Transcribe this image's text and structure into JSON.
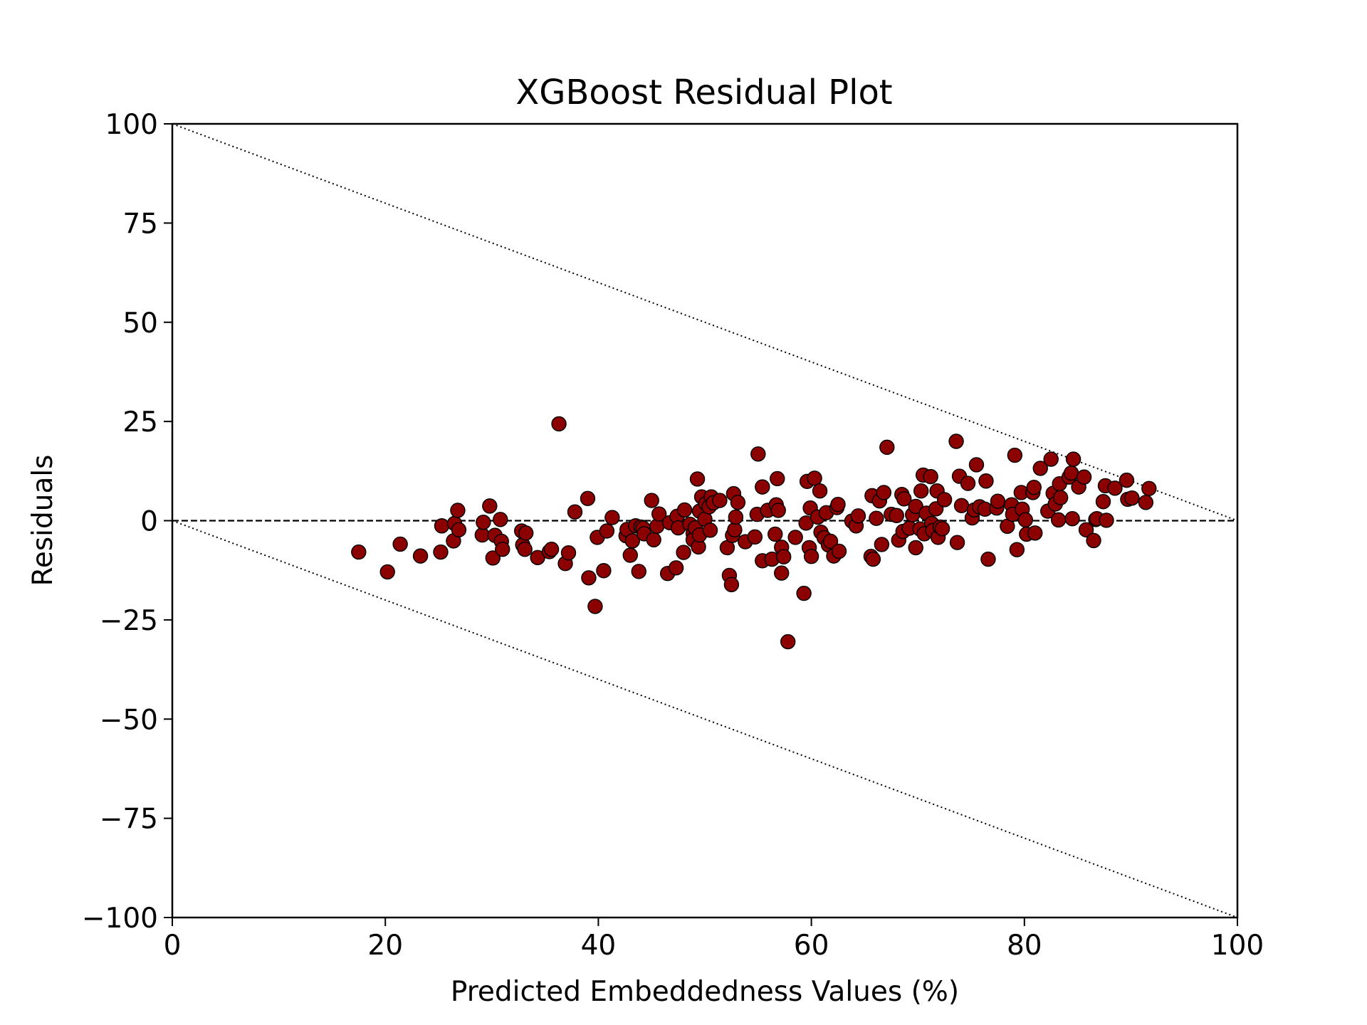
{
  "chart_data": {
    "type": "scatter",
    "title": "XGBoost Residual Plot",
    "xlabel": "Predicted Embeddedness Values (%)",
    "ylabel": "Residuals",
    "xlim": [
      0,
      100
    ],
    "ylim": [
      -100,
      100
    ],
    "xticks": [
      0,
      20,
      40,
      60,
      80,
      100
    ],
    "xtick_labels": [
      "0",
      "20",
      "40",
      "60",
      "80",
      "100"
    ],
    "yticks": [
      100,
      75,
      50,
      25,
      0,
      -25,
      -50,
      -75,
      -100
    ],
    "ytick_labels": [
      "100",
      "75",
      "50",
      "25",
      "0",
      "−25",
      "−50",
      "−75",
      "−100"
    ],
    "grid": false,
    "reference_lines": [
      {
        "style": "dashed",
        "points": [
          [
            0,
            0
          ],
          [
            100,
            0
          ]
        ]
      },
      {
        "style": "dotted",
        "points": [
          [
            0,
            100
          ],
          [
            100,
            0
          ]
        ]
      },
      {
        "style": "dotted",
        "points": [
          [
            0,
            0
          ],
          [
            100,
            -100
          ]
        ]
      }
    ],
    "marker_color": "#8b0000",
    "marker_edge_color": "#000000",
    "points": [
      [
        17.5,
        -7.9
      ],
      [
        20.2,
        -12.9
      ],
      [
        21.4,
        -5.9
      ],
      [
        23.3,
        -8.9
      ],
      [
        25.2,
        -7.9
      ],
      [
        25.3,
        -1.3
      ],
      [
        26.4,
        -5.1
      ],
      [
        26.5,
        -0.7
      ],
      [
        26.8,
        2.6
      ],
      [
        26.9,
        -2.3
      ],
      [
        29.1,
        -3.6
      ],
      [
        29.2,
        -0.4
      ],
      [
        29.8,
        3.7
      ],
      [
        30.1,
        -9.4
      ],
      [
        30.3,
        -3.7
      ],
      [
        30.8,
        0.3
      ],
      [
        30.9,
        -5.2
      ],
      [
        31.0,
        -7.2
      ],
      [
        32.8,
        -2.6
      ],
      [
        32.9,
        -6.1
      ],
      [
        33.1,
        -7.2
      ],
      [
        33.2,
        -3.1
      ],
      [
        34.3,
        -9.3
      ],
      [
        35.4,
        -7.8
      ],
      [
        35.6,
        -7.2
      ],
      [
        36.3,
        24.4
      ],
      [
        36.9,
        -10.8
      ],
      [
        37.2,
        -8.1
      ],
      [
        37.8,
        2.2
      ],
      [
        39.0,
        5.6
      ],
      [
        39.1,
        -14.4
      ],
      [
        39.7,
        -21.6
      ],
      [
        39.9,
        -4.2
      ],
      [
        40.5,
        -12.6
      ],
      [
        40.8,
        -2.6
      ],
      [
        41.3,
        0.8
      ],
      [
        42.6,
        -3.8
      ],
      [
        42.7,
        -2.2
      ],
      [
        43.0,
        -8.7
      ],
      [
        43.2,
        -5.1
      ],
      [
        43.5,
        -1.3
      ],
      [
        43.8,
        -12.8
      ],
      [
        44.0,
        -1.6
      ],
      [
        44.2,
        -1.9
      ],
      [
        44.3,
        -3.3
      ],
      [
        45.0,
        5.1
      ],
      [
        45.2,
        -4.8
      ],
      [
        45.5,
        -1.4
      ],
      [
        45.7,
        1.7
      ],
      [
        46.5,
        -13.3
      ],
      [
        46.7,
        -0.5
      ],
      [
        47.3,
        -11.9
      ],
      [
        47.4,
        1.1
      ],
      [
        47.5,
        -1.8
      ],
      [
        48.0,
        -8.0
      ],
      [
        48.1,
        2.7
      ],
      [
        48.6,
        -0.9
      ],
      [
        48.9,
        -3.2
      ],
      [
        48.9,
        -4.8
      ],
      [
        49.1,
        -1.8
      ],
      [
        49.3,
        10.5
      ],
      [
        49.4,
        -6.6
      ],
      [
        49.5,
        -3.6
      ],
      [
        49.5,
        2.4
      ],
      [
        49.7,
        6.0
      ],
      [
        50.0,
        0.4
      ],
      [
        50.1,
        4.3
      ],
      [
        50.4,
        3.5
      ],
      [
        50.5,
        -2.4
      ],
      [
        50.6,
        6.0
      ],
      [
        50.8,
        4.5
      ],
      [
        51.4,
        5.1
      ],
      [
        52.1,
        -6.8
      ],
      [
        52.3,
        -13.8
      ],
      [
        52.5,
        -16.1
      ],
      [
        52.6,
        -3.7
      ],
      [
        52.7,
        6.8
      ],
      [
        52.8,
        -2.3
      ],
      [
        52.9,
        0.9
      ],
      [
        53.1,
        4.6
      ],
      [
        53.8,
        -5.3
      ],
      [
        54.7,
        -4.1
      ],
      [
        54.9,
        1.6
      ],
      [
        55.0,
        16.8
      ],
      [
        55.4,
        -10.1
      ],
      [
        55.4,
        8.5
      ],
      [
        55.9,
        2.6
      ],
      [
        56.3,
        -9.7
      ],
      [
        56.6,
        -3.4
      ],
      [
        56.7,
        4.0
      ],
      [
        56.8,
        10.6
      ],
      [
        56.9,
        2.6
      ],
      [
        57.2,
        -6.7
      ],
      [
        57.2,
        -13.2
      ],
      [
        57.4,
        -9.1
      ],
      [
        57.8,
        -30.5
      ],
      [
        58.5,
        -4.2
      ],
      [
        59.3,
        -18.3
      ],
      [
        59.5,
        -0.6
      ],
      [
        59.6,
        9.9
      ],
      [
        59.8,
        -6.8
      ],
      [
        59.9,
        3.2
      ],
      [
        60.0,
        -9.0
      ],
      [
        60.3,
        10.7
      ],
      [
        60.6,
        0.9
      ],
      [
        60.8,
        7.5
      ],
      [
        60.9,
        -2.9
      ],
      [
        61.2,
        -4.3
      ],
      [
        61.4,
        2.0
      ],
      [
        61.6,
        -6.1
      ],
      [
        61.8,
        -5.2
      ],
      [
        62.1,
        -8.9
      ],
      [
        62.4,
        3.3
      ],
      [
        62.5,
        4.1
      ],
      [
        62.6,
        -7.7
      ],
      [
        63.8,
        -0.1
      ],
      [
        64.2,
        -1.3
      ],
      [
        64.4,
        1.2
      ],
      [
        65.6,
        -9.0
      ],
      [
        65.7,
        6.3
      ],
      [
        65.8,
        -9.7
      ],
      [
        66.1,
        0.6
      ],
      [
        66.4,
        5.0
      ],
      [
        66.6,
        -6.0
      ],
      [
        66.8,
        7.1
      ],
      [
        67.1,
        18.5
      ],
      [
        67.5,
        1.6
      ],
      [
        68.0,
        1.3
      ],
      [
        68.2,
        -4.9
      ],
      [
        68.5,
        6.6
      ],
      [
        68.6,
        -2.7
      ],
      [
        68.7,
        5.5
      ],
      [
        69.2,
        -1.9
      ],
      [
        69.5,
        1.5
      ],
      [
        69.8,
        3.6
      ],
      [
        69.8,
        -6.8
      ],
      [
        70.2,
        -2.1
      ],
      [
        70.3,
        7.5
      ],
      [
        70.5,
        11.5
      ],
      [
        70.6,
        -3.3
      ],
      [
        70.8,
        1.9
      ],
      [
        71.2,
        11.1
      ],
      [
        71.3,
        -0.7
      ],
      [
        71.4,
        -2.5
      ],
      [
        71.7,
        3.0
      ],
      [
        71.8,
        7.5
      ],
      [
        71.9,
        -4.2
      ],
      [
        72.1,
        -1.6
      ],
      [
        72.3,
        -2.0
      ],
      [
        72.5,
        5.3
      ],
      [
        73.6,
        20.0
      ],
      [
        73.7,
        -5.5
      ],
      [
        73.9,
        11.2
      ],
      [
        74.1,
        3.8
      ],
      [
        74.7,
        9.4
      ],
      [
        75.1,
        0.7
      ],
      [
        75.3,
        2.7
      ],
      [
        75.5,
        14.1
      ],
      [
        75.8,
        3.5
      ],
      [
        76.3,
        2.9
      ],
      [
        76.4,
        10.0
      ],
      [
        76.6,
        -9.7
      ],
      [
        77.4,
        3.2
      ],
      [
        77.5,
        4.9
      ],
      [
        78.4,
        -1.4
      ],
      [
        78.8,
        4.0
      ],
      [
        78.9,
        1.6
      ],
      [
        79.1,
        16.5
      ],
      [
        79.3,
        -7.3
      ],
      [
        79.7,
        7.1
      ],
      [
        79.8,
        2.9
      ],
      [
        80.1,
        0.2
      ],
      [
        80.2,
        -3.4
      ],
      [
        80.8,
        7.1
      ],
      [
        80.9,
        8.4
      ],
      [
        81.0,
        -3.1
      ],
      [
        81.5,
        13.2
      ],
      [
        82.2,
        2.4
      ],
      [
        82.5,
        15.5
      ],
      [
        82.7,
        6.9
      ],
      [
        82.9,
        4.2
      ],
      [
        83.2,
        0.2
      ],
      [
        83.3,
        9.3
      ],
      [
        83.4,
        5.8
      ],
      [
        84.2,
        11.0
      ],
      [
        84.4,
        12.0
      ],
      [
        84.5,
        0.5
      ],
      [
        84.6,
        15.5
      ],
      [
        85.1,
        8.5
      ],
      [
        85.6,
        11.0
      ],
      [
        85.8,
        -2.3
      ],
      [
        86.5,
        -5.0
      ],
      [
        86.7,
        0.3
      ],
      [
        86.8,
        0.5
      ],
      [
        87.4,
        4.8
      ],
      [
        87.6,
        8.8
      ],
      [
        87.7,
        0.1
      ],
      [
        88.5,
        8.2
      ],
      [
        89.6,
        10.2
      ],
      [
        89.7,
        5.4
      ],
      [
        90.1,
        5.7
      ],
      [
        91.4,
        4.6
      ],
      [
        91.7,
        8.1
      ]
    ]
  }
}
